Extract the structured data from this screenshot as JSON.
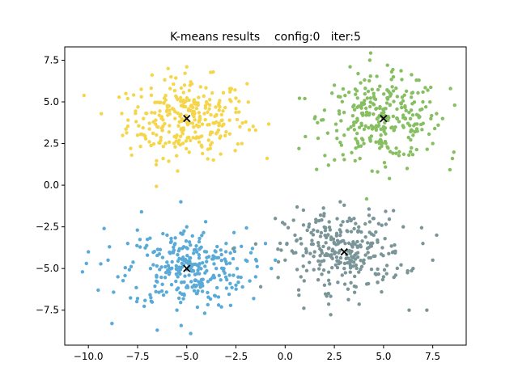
{
  "chart_data": {
    "type": "scatter",
    "title": "K-means results    config:0   iter:5",
    "xlabel": "",
    "ylabel": "",
    "xlim": [
      -11.2,
      9.2
    ],
    "ylim": [
      -9.6,
      8.3
    ],
    "grid": false,
    "x_ticks": [
      -10.0,
      -7.5,
      -5.0,
      -2.5,
      0.0,
      2.5,
      5.0,
      7.5
    ],
    "x_tick_labels": [
      "−10.0",
      "−7.5",
      "−5.0",
      "−2.5",
      "0.0",
      "2.5",
      "5.0",
      "7.5"
    ],
    "y_ticks": [
      7.5,
      5.0,
      2.5,
      0.0,
      -2.5,
      -5.0,
      -7.5
    ],
    "y_tick_labels": [
      "7.5",
      "5.0",
      "2.5",
      "0.0",
      "−2.5",
      "−5.0",
      "−7.5"
    ],
    "clusters": [
      {
        "color": "#f5d54a",
        "center": [
          -5.0,
          4.0
        ],
        "approx_points": 300,
        "points": [
          [
            -8.0,
            5.2
          ],
          [
            -7.2,
            4.0
          ],
          [
            -6.8,
            5.4
          ],
          [
            -6.5,
            3.5
          ],
          [
            -6.0,
            4.5
          ],
          [
            -5.5,
            3.0
          ],
          [
            -5.2,
            4.8
          ],
          [
            -4.5,
            3.6
          ],
          [
            -4.0,
            5.0
          ],
          [
            -3.5,
            4.2
          ],
          [
            -3.0,
            3.2
          ],
          [
            -2.5,
            4.6
          ],
          [
            -2.0,
            3.8
          ],
          [
            -1.5,
            3.3
          ],
          [
            -5.8,
            6.5
          ],
          [
            -4.8,
            6.2
          ],
          [
            -5.0,
            7.1
          ],
          [
            -7.8,
            1.8
          ],
          [
            -6.2,
            1.6
          ],
          [
            -4.2,
            1.9
          ],
          [
            -3.8,
            2.2
          ],
          [
            -2.8,
            5.6
          ],
          [
            -4.3,
            5.9
          ],
          [
            -6.9,
            2.6
          ],
          [
            -2.2,
            2.5
          ],
          [
            -7.5,
            3.0
          ],
          [
            -8.3,
            4.3
          ],
          [
            -5.6,
            4.0
          ],
          [
            -4.6,
            4.3
          ],
          [
            -3.2,
            3.9
          ]
        ]
      },
      {
        "color": "#86bf62",
        "center": [
          5.0,
          4.0
        ],
        "approx_points": 300,
        "points": [
          [
            1.0,
            5.2
          ],
          [
            2.0,
            4.5
          ],
          [
            2.5,
            6.0
          ],
          [
            3.0,
            3.0
          ],
          [
            3.5,
            4.8
          ],
          [
            4.0,
            2.5
          ],
          [
            4.5,
            5.5
          ],
          [
            5.0,
            3.5
          ],
          [
            5.5,
            6.5
          ],
          [
            6.0,
            4.2
          ],
          [
            6.5,
            3.0
          ],
          [
            7.0,
            5.0
          ],
          [
            7.5,
            2.5
          ],
          [
            8.0,
            4.0
          ],
          [
            8.5,
            1.6
          ],
          [
            4.3,
            7.5
          ],
          [
            5.2,
            7.2
          ],
          [
            3.3,
            7.1
          ],
          [
            0.7,
            2.2
          ],
          [
            2.2,
            1.2
          ],
          [
            4.7,
            0.8
          ],
          [
            5.3,
            0.4
          ],
          [
            6.2,
            1.0
          ],
          [
            8.4,
            5.8
          ],
          [
            7.6,
            3.4
          ],
          [
            3.8,
            1.6
          ],
          [
            1.5,
            4.0
          ],
          [
            2.8,
            5.3
          ],
          [
            5.8,
            2.0
          ],
          [
            6.8,
            6.3
          ]
        ]
      },
      {
        "color": "#5aaad8",
        "center": [
          -5.0,
          -5.0
        ],
        "approx_points": 300,
        "points": [
          [
            -10.3,
            -5.2
          ],
          [
            -10.0,
            -4.0
          ],
          [
            -9.5,
            -6.3
          ],
          [
            -9.0,
            -4.5
          ],
          [
            -8.5,
            -5.5
          ],
          [
            -8.0,
            -3.5
          ],
          [
            -7.5,
            -6.8
          ],
          [
            -7.0,
            -4.2
          ],
          [
            -6.5,
            -5.8
          ],
          [
            -6.0,
            -3.0
          ],
          [
            -5.5,
            -7.5
          ],
          [
            -5.0,
            -2.5
          ],
          [
            -4.5,
            -6.5
          ],
          [
            -4.0,
            -4.0
          ],
          [
            -3.5,
            -5.0
          ],
          [
            -3.0,
            -3.5
          ],
          [
            -2.5,
            -6.0
          ],
          [
            -2.0,
            -4.5
          ],
          [
            -1.5,
            -5.5
          ],
          [
            -1.0,
            -3.5
          ],
          [
            -0.5,
            -4.5
          ],
          [
            -5.3,
            -1.0
          ],
          [
            -4.8,
            -8.9
          ],
          [
            -6.5,
            -8.7
          ],
          [
            -8.8,
            -8.3
          ],
          [
            -1.6,
            -6.8
          ],
          [
            -9.2,
            -2.6
          ],
          [
            -0.7,
            -5.0
          ],
          [
            -10.1,
            -4.7
          ],
          [
            -7.3,
            -1.6
          ]
        ]
      },
      {
        "color": "#7a9598",
        "center": [
          3.0,
          -4.0
        ],
        "approx_points": 300,
        "points": [
          [
            -0.5,
            -2.0
          ],
          [
            0.0,
            -4.5
          ],
          [
            0.5,
            -3.0
          ],
          [
            0.8,
            -5.5
          ],
          [
            1.2,
            -2.5
          ],
          [
            1.5,
            -4.0
          ],
          [
            2.0,
            -6.0
          ],
          [
            2.5,
            -3.5
          ],
          [
            3.0,
            -5.0
          ],
          [
            3.5,
            -2.0
          ],
          [
            4.0,
            -4.5
          ],
          [
            4.5,
            -3.0
          ],
          [
            5.0,
            -5.5
          ],
          [
            5.5,
            -4.0
          ],
          [
            6.0,
            -2.5
          ],
          [
            6.5,
            -5.0
          ],
          [
            7.0,
            -3.5
          ],
          [
            7.5,
            -4.5
          ],
          [
            7.7,
            -3.0
          ],
          [
            2.8,
            -1.0
          ],
          [
            3.0,
            -1.2
          ],
          [
            2.2,
            -6.5
          ],
          [
            6.3,
            -7.5
          ],
          [
            7.2,
            -7.5
          ],
          [
            0.7,
            -6.6
          ],
          [
            4.9,
            -6.4
          ],
          [
            -0.2,
            -3.9
          ],
          [
            1.8,
            -1.8
          ],
          [
            4.3,
            -2.2
          ],
          [
            3.6,
            -6.1
          ]
        ]
      }
    ],
    "centers_marker": {
      "shape": "x",
      "color": "#000000"
    }
  }
}
